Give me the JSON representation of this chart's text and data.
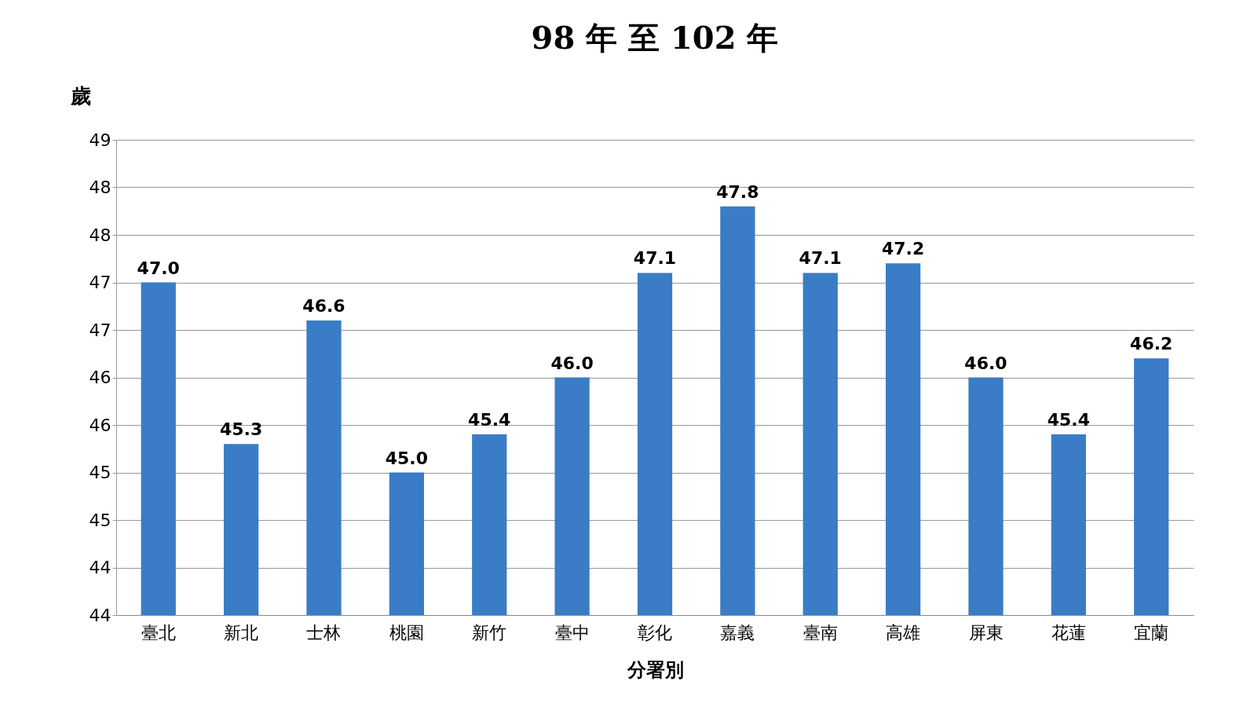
{
  "chart_data": {
    "type": "bar",
    "title": "98 年 至 102 年",
    "ylabel": "歲",
    "xlabel": "分署別",
    "categories": [
      "臺北",
      "新北",
      "士林",
      "桃園",
      "新竹",
      "臺中",
      "彰化",
      "嘉義",
      "臺南",
      "高雄",
      "屏東",
      "花蓮",
      "宜蘭"
    ],
    "values": [
      47.0,
      45.3,
      46.6,
      45.0,
      45.4,
      46.0,
      47.1,
      47.8,
      47.1,
      47.2,
      46.0,
      45.4,
      46.2
    ],
    "color": "#3a7cc6",
    "ylim": [
      43.5,
      48.5
    ],
    "yticks": [
      {
        "value": 43.5,
        "label": "44"
      },
      {
        "value": 44,
        "label": "44"
      },
      {
        "value": 44.5,
        "label": "45"
      },
      {
        "value": 45,
        "label": "45"
      },
      {
        "value": 45.5,
        "label": "46"
      },
      {
        "value": 46,
        "label": "46"
      },
      {
        "value": 46.5,
        "label": "47"
      },
      {
        "value": 47,
        "label": "47"
      },
      {
        "value": 47.5,
        "label": "48"
      },
      {
        "value": 48,
        "label": "48"
      },
      {
        "value": 48.5,
        "label": "49"
      }
    ],
    "value_labels": [
      "47.0",
      "45.3",
      "46.6",
      "45.0",
      "45.4",
      "46.0",
      "47.1",
      "47.8",
      "47.1",
      "47.2",
      "46.0",
      "45.4",
      "46.2"
    ],
    "grid": "y"
  }
}
